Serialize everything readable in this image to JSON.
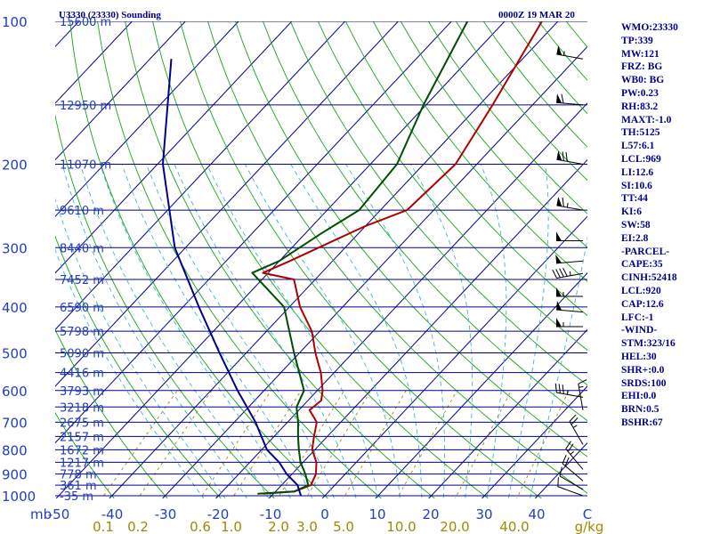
{
  "header": {
    "station": "U3330 (23330) Sounding",
    "time": "0000Z 19 MAR 20"
  },
  "sidebar": [
    "WMO:23330",
    "TP:339",
    "MW:121",
    "FRZ: BG",
    "WB0: BG",
    "PW:0.23",
    "RH:83.2",
    "MAXT:-1.0",
    "TH:5125",
    "L57:6.1",
    "LCL:969",
    "LI:12.6",
    "SI:10.6",
    "TT:44",
    "KI:6",
    "SW:58",
    "EI:2.8",
    "-PARCEL-",
    "CAPE:35",
    "CINH:52418",
    "LCL:920",
    "CAP:12.6",
    "LFC:-1",
    "-WIND-",
    "STM:323/16",
    "HEL:30",
    "SHR+:0.0",
    "SRDS:100",
    "EHI:0.0",
    "BRN:0.5",
    "BSHR:67"
  ],
  "colors": {
    "isobar": "#00008b",
    "isotherm": "#00008b",
    "dry_adiabat": "#16a616",
    "moist_adiabat": "#3bb6d6",
    "mixing_ratio": "#a08a00",
    "temperature": "#b00000",
    "dewpoint": "#004d00",
    "parcel": "#00008b",
    "wind": "#000000"
  },
  "chart_data": {
    "type": "skew-t log-p",
    "title": "U3330 (23330) Sounding 0000Z 19 MAR 20",
    "pressure_axis_label": "mb",
    "pressure_range_mb": [
      1000,
      100
    ],
    "pressure_ticks": [
      100,
      200,
      300,
      400,
      500,
      600,
      700,
      800,
      900,
      1000
    ],
    "temperature_range_c": [
      -50,
      50
    ],
    "temperature_ticks": [
      "-50",
      "-40",
      "-30",
      "-20",
      "-10",
      "0",
      "10",
      "20",
      "30",
      "40",
      "C"
    ],
    "mixing_ratio_axis_label": "g/kg",
    "mixing_ratio_ticks": [
      "0.1",
      "0.2",
      "0.6",
      "1.0",
      "2.0",
      "3.0",
      "5.0",
      "10.0",
      "20.0",
      "40.0"
    ],
    "height_levels": [
      {
        "p": 100,
        "label": "15600 m"
      },
      {
        "p": 150,
        "label": "12950 m"
      },
      {
        "p": 200,
        "label": "11070 m"
      },
      {
        "p": 250,
        "label": "9610 m"
      },
      {
        "p": 300,
        "label": "8440 m"
      },
      {
        "p": 350,
        "label": "7452 m"
      },
      {
        "p": 400,
        "label": "6590 m"
      },
      {
        "p": 450,
        "label": "5798 m"
      },
      {
        "p": 500,
        "label": "5090 m"
      },
      {
        "p": 550,
        "label": "4416 m"
      },
      {
        "p": 600,
        "label": "3793 m"
      },
      {
        "p": 650,
        "label": "3218 m"
      },
      {
        "p": 700,
        "label": "2675 m"
      },
      {
        "p": 750,
        "label": "2157 m"
      },
      {
        "p": 800,
        "label": "1672 m"
      },
      {
        "p": 850,
        "label": "1217 m"
      },
      {
        "p": 900,
        "label": "778 m"
      },
      {
        "p": 950,
        "label": "361 m"
      },
      {
        "p": 1000,
        "label": "-35 m"
      }
    ],
    "series": [
      {
        "name": "temperature",
        "points": [
          {
            "p": 990,
            "t": -12.0
          },
          {
            "p": 980,
            "t": -6.5
          },
          {
            "p": 950,
            "t": -4.5
          },
          {
            "p": 900,
            "t": -5.5
          },
          {
            "p": 850,
            "t": -7.5
          },
          {
            "p": 800,
            "t": -10.5
          },
          {
            "p": 750,
            "t": -12.5
          },
          {
            "p": 700,
            "t": -14.5
          },
          {
            "p": 660,
            "t": -18.0
          },
          {
            "p": 630,
            "t": -17.5
          },
          {
            "p": 600,
            "t": -19.0
          },
          {
            "p": 550,
            "t": -22.5
          },
          {
            "p": 500,
            "t": -27.0
          },
          {
            "p": 450,
            "t": -31.5
          },
          {
            "p": 400,
            "t": -38.0
          },
          {
            "p": 350,
            "t": -44.0
          },
          {
            "p": 339,
            "t": -51.0
          },
          {
            "p": 320,
            "t": -48.0
          },
          {
            "p": 300,
            "t": -45.0
          },
          {
            "p": 270,
            "t": -40.0
          },
          {
            "p": 250,
            "t": -35.0
          },
          {
            "p": 200,
            "t": -34.0
          },
          {
            "p": 150,
            "t": -37.5
          },
          {
            "p": 100,
            "t": -43.0
          }
        ]
      },
      {
        "name": "dewpoint",
        "points": [
          {
            "p": 990,
            "t": -13.0
          },
          {
            "p": 980,
            "t": -6.5
          },
          {
            "p": 950,
            "t": -5.0
          },
          {
            "p": 900,
            "t": -7.5
          },
          {
            "p": 850,
            "t": -10.5
          },
          {
            "p": 800,
            "t": -13.0
          },
          {
            "p": 750,
            "t": -15.5
          },
          {
            "p": 700,
            "t": -18.0
          },
          {
            "p": 650,
            "t": -21.0
          },
          {
            "p": 600,
            "t": -22.5
          },
          {
            "p": 500,
            "t": -31.0
          },
          {
            "p": 400,
            "t": -41.0
          },
          {
            "p": 339,
            "t": -53.0
          },
          {
            "p": 320,
            "t": -50.0
          },
          {
            "p": 280,
            "t": -47.0
          },
          {
            "p": 250,
            "t": -44.0
          },
          {
            "p": 200,
            "t": -45.0
          },
          {
            "p": 150,
            "t": -50.5
          },
          {
            "p": 100,
            "t": -57.0
          }
        ]
      },
      {
        "name": "parcel",
        "points": [
          {
            "p": 1000,
            "t": -4.5
          },
          {
            "p": 950,
            "t": -7.0
          },
          {
            "p": 900,
            "t": -11.0
          },
          {
            "p": 850,
            "t": -14.5
          },
          {
            "p": 800,
            "t": -19.0
          },
          {
            "p": 700,
            "t": -26.0
          },
          {
            "p": 600,
            "t": -35.0
          },
          {
            "p": 500,
            "t": -45.0
          },
          {
            "p": 400,
            "t": -57.0
          },
          {
            "p": 300,
            "t": -72.0
          },
          {
            "p": 200,
            "t": -89.0
          },
          {
            "p": 120,
            "t": -106.0
          }
        ]
      }
    ],
    "wind_barbs": [
      {
        "p": 1000,
        "dir": 290,
        "speed": 10
      },
      {
        "p": 970,
        "dir": 300,
        "speed": 10
      },
      {
        "p": 930,
        "dir": 310,
        "speed": 20
      },
      {
        "p": 880,
        "dir": 320,
        "speed": 25
      },
      {
        "p": 780,
        "dir": 330,
        "speed": 25
      },
      {
        "p": 660,
        "dir": 350,
        "speed": 15
      },
      {
        "p": 620,
        "dir": 280,
        "speed": 35
      },
      {
        "p": 440,
        "dir": 270,
        "speed": 55
      },
      {
        "p": 410,
        "dir": 275,
        "speed": 50
      },
      {
        "p": 380,
        "dir": 270,
        "speed": 55
      },
      {
        "p": 340,
        "dir": 260,
        "speed": 45
      },
      {
        "p": 320,
        "dir": 265,
        "speed": 50
      },
      {
        "p": 290,
        "dir": 270,
        "speed": 50
      },
      {
        "p": 250,
        "dir": 280,
        "speed": 65
      },
      {
        "p": 200,
        "dir": 280,
        "speed": 70
      },
      {
        "p": 150,
        "dir": 275,
        "speed": 60
      },
      {
        "p": 120,
        "dir": 280,
        "speed": 55
      }
    ]
  }
}
